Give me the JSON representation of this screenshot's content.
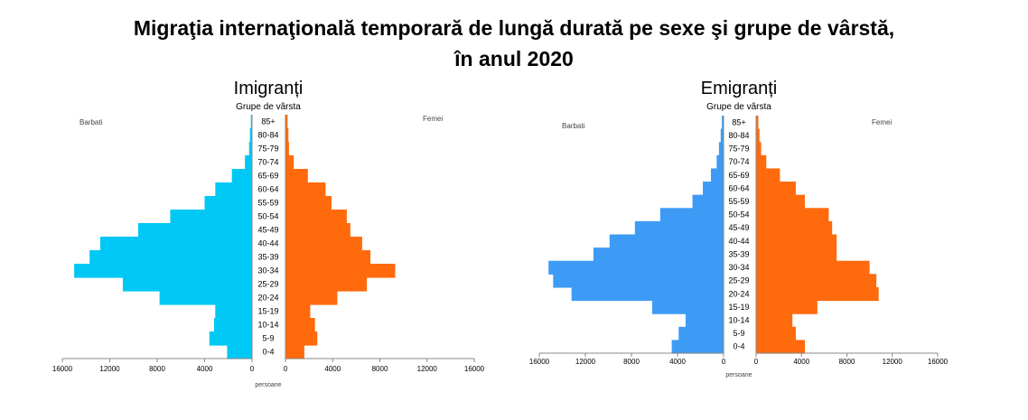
{
  "title": {
    "line1": "Migraţia internaţională temporară de lungă durată pe sexe şi grupe de vârstă,",
    "line2": "în anul 2020"
  },
  "chart_data": [
    {
      "type": "bar",
      "title": "Imigranți",
      "subtitle": "Grupe de vârsta",
      "left_label": "Barbati",
      "right_label": "Femei",
      "xlabel": "persoane",
      "xlim": [
        0,
        16000
      ],
      "ticks_left": [
        "16000",
        "12000",
        "8000",
        "4000",
        "0"
      ],
      "ticks_right": [
        "0",
        "4000",
        "8000",
        "12000",
        "16000"
      ],
      "categories": [
        "85+",
        "80-84",
        "75-79",
        "70-74",
        "65-69",
        "60-64",
        "55-59",
        "50-54",
        "45-49",
        "40-44",
        "35-39",
        "30-34",
        "25-29",
        "20-24",
        "15-19",
        "10-14",
        "5-9",
        "0-4"
      ],
      "series": [
        {
          "name": "Barbati",
          "color": "#00c8f5",
          "values": [
            100,
            180,
            250,
            600,
            1700,
            3100,
            4000,
            6900,
            9600,
            12800,
            13700,
            15000,
            10900,
            7800,
            3100,
            3200,
            3600,
            2100
          ]
        },
        {
          "name": "Femei",
          "color": "#ff6a0d",
          "values": [
            180,
            250,
            300,
            700,
            1900,
            3400,
            3900,
            5200,
            5500,
            6500,
            7200,
            9300,
            6900,
            4400,
            2100,
            2500,
            2700,
            1600
          ]
        }
      ]
    },
    {
      "type": "bar",
      "title": "Emigranți",
      "subtitle": "Grupe de vârsta",
      "left_label": "Barbati",
      "right_label": "Femei",
      "xlabel": "persoane",
      "xlim": [
        0,
        16000
      ],
      "ticks_left": [
        "16000",
        "12000",
        "8000",
        "4000",
        "0"
      ],
      "ticks_right": [
        "0",
        "4000",
        "8000",
        "12000",
        "16000"
      ],
      "categories": [
        "85+",
        "80-84",
        "75-79",
        "70-74",
        "65-69",
        "60-64",
        "55-59",
        "50-54",
        "45-49",
        "40-44",
        "35-39",
        "30-34",
        "25-29",
        "20-24",
        "15-19",
        "10-14",
        "5-9",
        "0-4"
      ],
      "series": [
        {
          "name": "Barbati",
          "color": "#3d9bf5",
          "values": [
            150,
            250,
            400,
            600,
            1100,
            1800,
            2700,
            5500,
            7700,
            9900,
            11300,
            15200,
            14800,
            13200,
            6200,
            3300,
            3900,
            4500
          ]
        },
        {
          "name": "Femei",
          "color": "#ff6a0d",
          "values": [
            200,
            300,
            450,
            900,
            2100,
            3500,
            4300,
            6400,
            6700,
            7100,
            7100,
            10000,
            10600,
            10800,
            5400,
            3200,
            3500,
            4300
          ]
        }
      ]
    }
  ]
}
